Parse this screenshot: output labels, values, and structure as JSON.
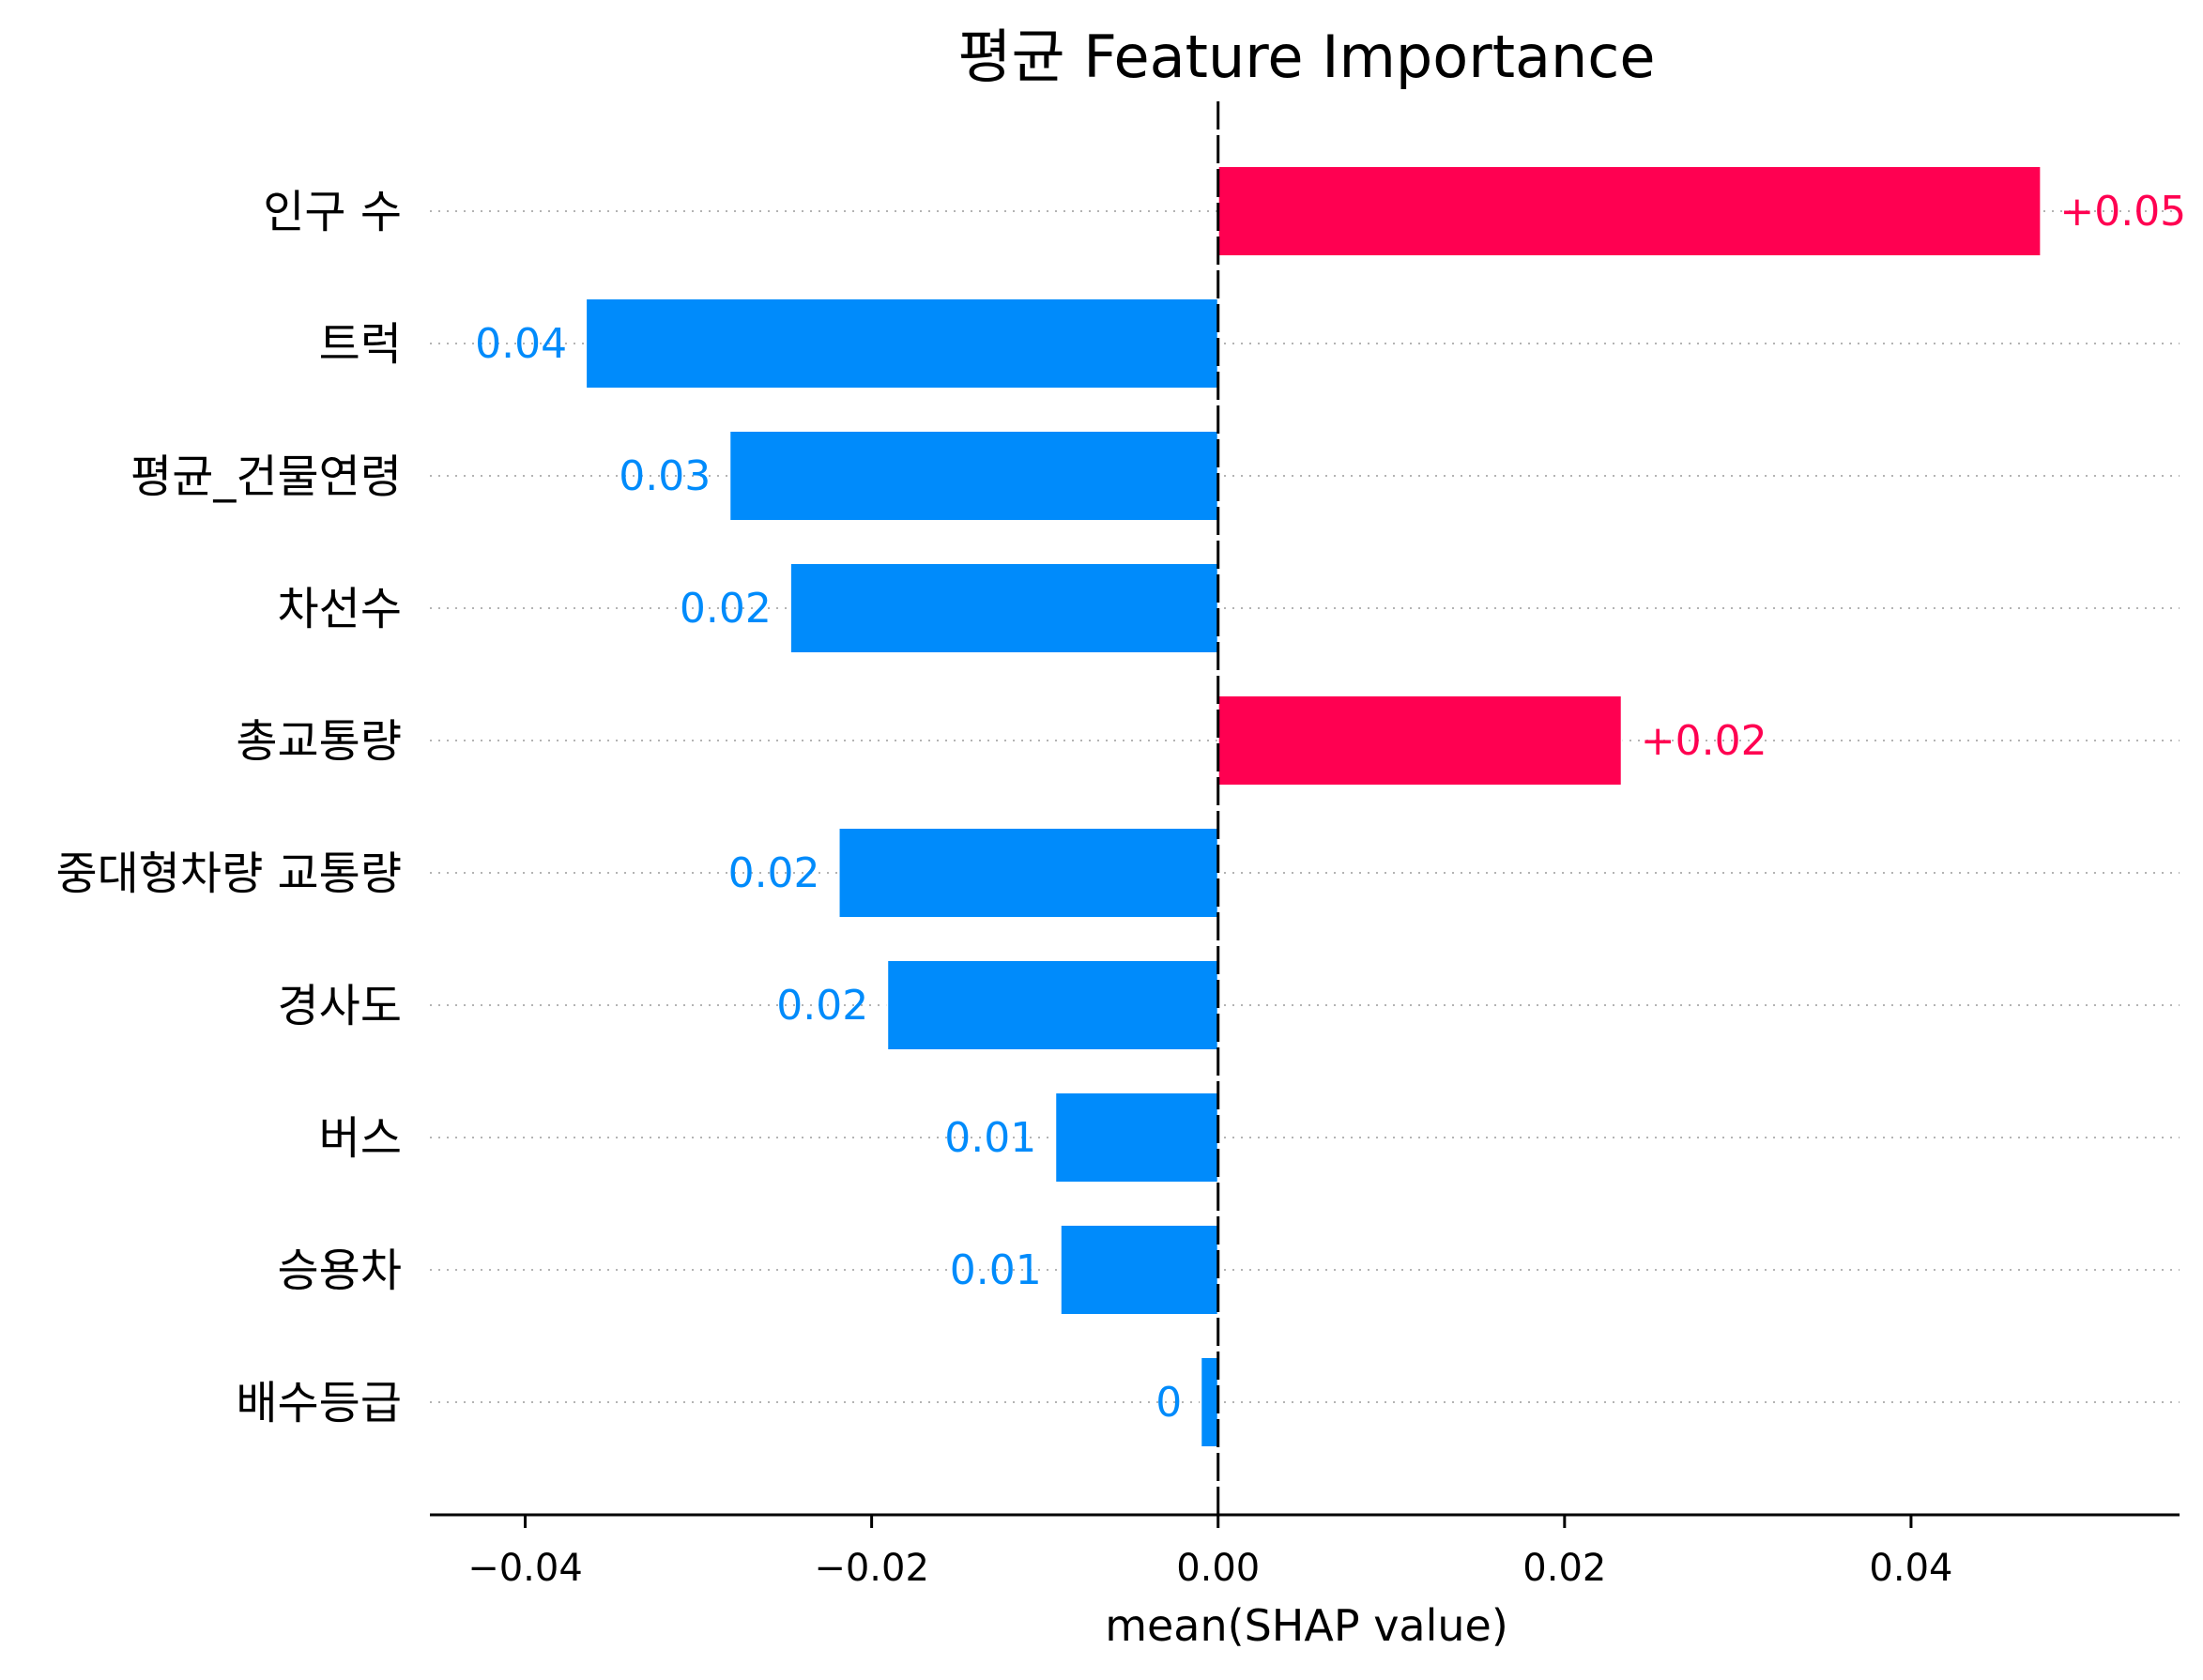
{
  "chart_data": {
    "type": "bar",
    "orientation": "horizontal",
    "title": "평균 Feature Importance",
    "xlabel": "mean(SHAP value)",
    "ylabel": "",
    "xlim": [
      -0.0455,
      0.0555
    ],
    "xticks": [
      -0.04,
      -0.02,
      0.0,
      0.02,
      0.04
    ],
    "xtick_labels": [
      "−0.04",
      "−0.02",
      "0.00",
      "0.02",
      "0.04"
    ],
    "grid": "dotted horizontal guide lines per row",
    "categories": [
      "인구 수",
      "트럭",
      "평균_건물연령",
      "차선수",
      "총교통량",
      "중대형차량 교통량",
      "경사도",
      "버스",
      "승용차",
      "배수등급"
    ],
    "values": [
      0.0475,
      -0.0365,
      -0.0282,
      -0.0247,
      0.0233,
      -0.0219,
      -0.0191,
      -0.0094,
      -0.0091,
      -0.001
    ],
    "data_labels": [
      "+0.05",
      "0.04",
      "0.03",
      "0.02",
      "+0.02",
      "0.02",
      "0.02",
      "0.01",
      "0.01",
      "0"
    ]
  },
  "colors": {
    "positive": "#ff0051",
    "negative": "#008bfb",
    "axis": "#000000",
    "guide": "#b3b3b3"
  }
}
